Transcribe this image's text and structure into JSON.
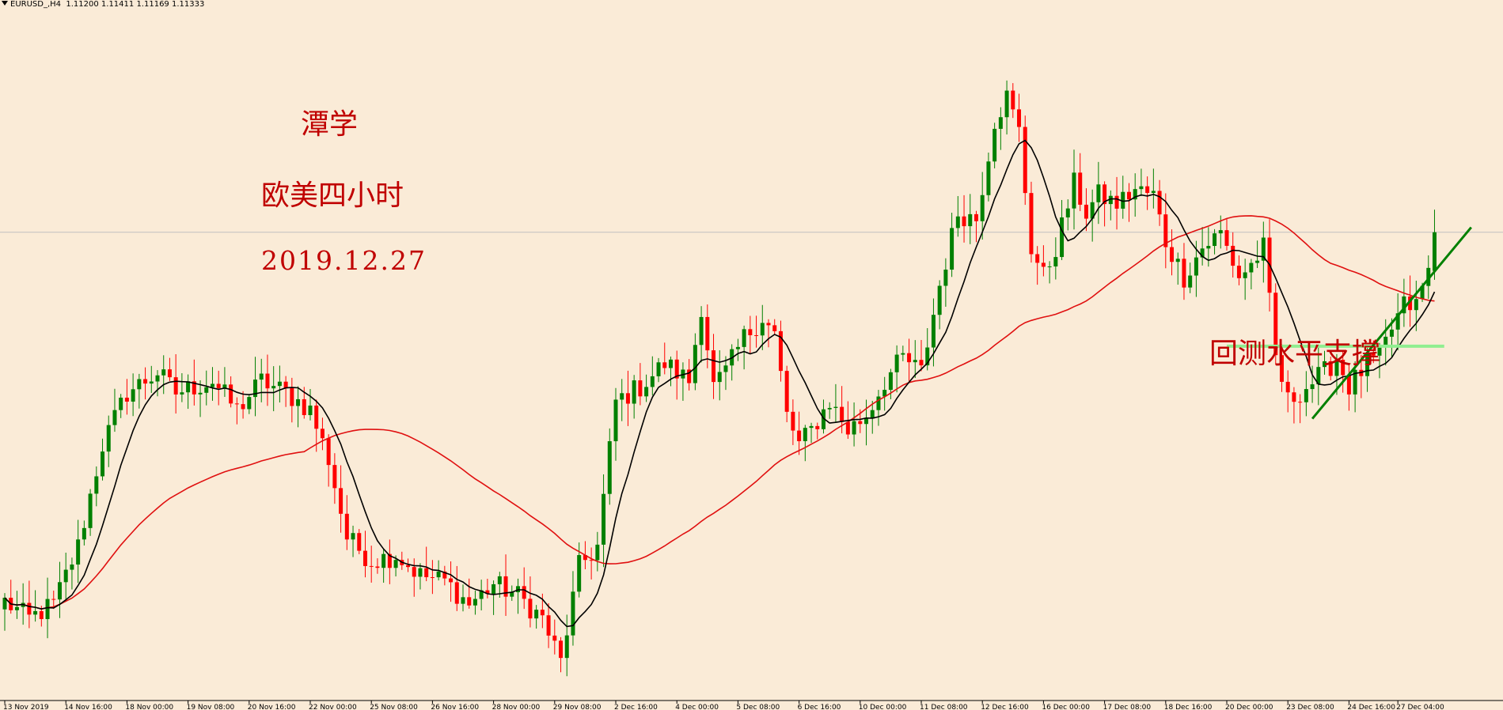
{
  "header": {
    "symbol": "EURUSD_,H4",
    "ohlc": "1.11200 1.11411 1.11169 1.11333"
  },
  "annotations": {
    "author": "潭学",
    "subtitle": "欧美四小时",
    "date": "2019.12.27",
    "support_note": "回测水平支撑"
  },
  "colors": {
    "background": "#FAEBD7",
    "bull": "#008000",
    "bear": "#FF0000",
    "ma_fast": "#000000",
    "ma_slow": "#E01010",
    "trendline": "#008000",
    "support_line": "#90EE90",
    "annotation": "#C00000"
  },
  "chart_data": {
    "type": "candlestick",
    "symbol": "EURUSD",
    "timeframe": "H4",
    "ylim": [
      1.09718,
      1.12085
    ],
    "y_ticks": [
      "1.12010",
      "1.11920",
      "1.11830",
      "1.11740",
      "1.11650",
      "1.11560",
      "1.11470",
      "1.11380",
      "1.11290",
      "1.11200",
      "1.11110",
      "1.11020",
      "1.10930",
      "1.10840",
      "1.10750",
      "1.10660",
      "1.10570",
      "1.10480",
      "1.10390",
      "1.10300",
      "1.10210",
      "1.10120",
      "1.10030",
      "1.09940",
      "1.09850",
      "1.09760"
    ],
    "current_price": "1.11333",
    "x_ticks": [
      {
        "label": "13 Nov 2019",
        "index": 0
      },
      {
        "label": "14 Nov 16:00",
        "index": 10
      },
      {
        "label": "18 Nov 00:00",
        "index": 20
      },
      {
        "label": "19 Nov 08:00",
        "index": 30
      },
      {
        "label": "20 Nov 16:00",
        "index": 40
      },
      {
        "label": "22 Nov 00:00",
        "index": 50
      },
      {
        "label": "25 Nov 08:00",
        "index": 60
      },
      {
        "label": "26 Nov 16:00",
        "index": 70
      },
      {
        "label": "28 Nov 00:00",
        "index": 80
      },
      {
        "label": "29 Nov 08:00",
        "index": 90
      },
      {
        "label": "2 Dec 16:00",
        "index": 100
      },
      {
        "label": "4 Dec 00:00",
        "index": 110
      },
      {
        "label": "5 Dec 08:00",
        "index": 120
      },
      {
        "label": "6 Dec 16:00",
        "index": 130
      },
      {
        "label": "10 Dec 00:00",
        "index": 140
      },
      {
        "label": "11 Dec 08:00",
        "index": 150
      },
      {
        "label": "12 Dec 16:00",
        "index": 160
      },
      {
        "label": "16 Dec 00:00",
        "index": 170
      },
      {
        "label": "17 Dec 08:00",
        "index": 180
      },
      {
        "label": "18 Dec 16:00",
        "index": 190
      },
      {
        "label": "20 Dec 00:00",
        "index": 200
      },
      {
        "label": "23 Dec 08:00",
        "index": 210
      },
      {
        "label": "24 Dec 16:00",
        "index": 220
      },
      {
        "label": "27 Dec 04:00",
        "index": 228
      }
    ],
    "waypoints": [
      [
        0,
        1.1006
      ],
      [
        4,
        1.1
      ],
      [
        8,
        1.1005
      ],
      [
        12,
        1.1025
      ],
      [
        16,
        1.106
      ],
      [
        20,
        1.1078
      ],
      [
        25,
        1.1085
      ],
      [
        28,
        1.1078
      ],
      [
        34,
        1.1082
      ],
      [
        38,
        1.1072
      ],
      [
        42,
        1.1082
      ],
      [
        46,
        1.1078
      ],
      [
        50,
        1.1072
      ],
      [
        53,
        1.1055
      ],
      [
        56,
        1.1028
      ],
      [
        60,
        1.102
      ],
      [
        64,
        1.1022
      ],
      [
        68,
        1.1015
      ],
      [
        72,
        1.1013
      ],
      [
        76,
        1.1005
      ],
      [
        80,
        1.1012
      ],
      [
        84,
        1.1008
      ],
      [
        88,
        1.1
      ],
      [
        91,
        1.0985
      ],
      [
        94,
        1.1018
      ],
      [
        97,
        1.1025
      ],
      [
        100,
        1.1075
      ],
      [
        104,
        1.108
      ],
      [
        108,
        1.1088
      ],
      [
        112,
        1.1082
      ],
      [
        114,
        1.1108
      ],
      [
        116,
        1.108
      ],
      [
        118,
        1.1085
      ],
      [
        121,
        1.1097
      ],
      [
        124,
        1.1104
      ],
      [
        126,
        1.1098
      ],
      [
        128,
        1.107
      ],
      [
        130,
        1.106
      ],
      [
        132,
        1.1065
      ],
      [
        135,
        1.1075
      ],
      [
        138,
        1.1065
      ],
      [
        141,
        1.107
      ],
      [
        144,
        1.1082
      ],
      [
        147,
        1.109
      ],
      [
        150,
        1.1085
      ],
      [
        153,
        1.1115
      ],
      [
        156,
        1.114
      ],
      [
        159,
        1.1138
      ],
      [
        162,
        1.1172
      ],
      [
        164,
        1.118
      ],
      [
        166,
        1.1168
      ],
      [
        168,
        1.1128
      ],
      [
        170,
        1.1118
      ],
      [
        172,
        1.1128
      ],
      [
        175,
        1.115
      ],
      [
        177,
        1.114
      ],
      [
        179,
        1.1146
      ],
      [
        182,
        1.1143
      ],
      [
        185,
        1.1148
      ],
      [
        188,
        1.1146
      ],
      [
        190,
        1.113
      ],
      [
        193,
        1.1118
      ],
      [
        196,
        1.1128
      ],
      [
        199,
        1.1133
      ],
      [
        202,
        1.1118
      ],
      [
        204,
        1.1122
      ],
      [
        206,
        1.1128
      ],
      [
        208,
        1.109
      ],
      [
        210,
        1.1075
      ],
      [
        213,
        1.108
      ],
      [
        216,
        1.1085
      ],
      [
        218,
        1.109
      ],
      [
        220,
        1.108
      ],
      [
        223,
        1.1088
      ],
      [
        225,
        1.109
      ],
      [
        227,
        1.11
      ],
      [
        229,
        1.1108
      ],
      [
        231,
        1.1108
      ],
      [
        233,
        1.112
      ],
      [
        234,
        1.1133
      ]
    ],
    "ma_fast": {
      "period": 8
    },
    "ma_slow": {
      "period": 50
    },
    "support_level": 1.1094,
    "trendline": {
      "from": [
        214,
        1.1069
      ],
      "to": [
        240,
        1.1135
      ]
    }
  }
}
